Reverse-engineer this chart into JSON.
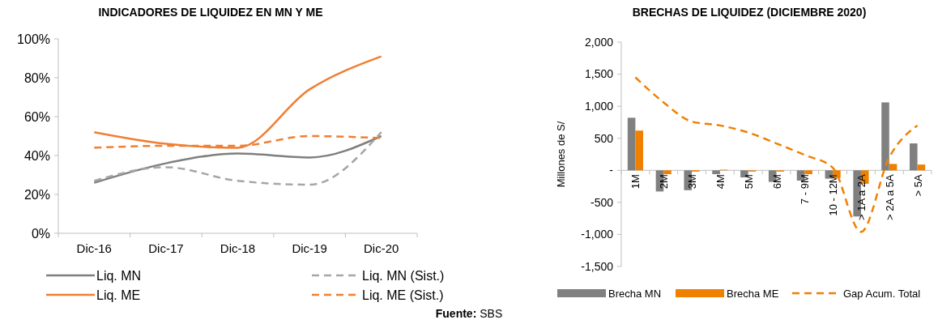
{
  "chart_data": [
    {
      "type": "line",
      "title": "INDICADORES DE LIQUIDEZ EN MN Y ME",
      "categories": [
        "Dic-16",
        "Dic-17",
        "Dic-18",
        "Dic-19",
        "Dic-20"
      ],
      "series": [
        {
          "name": "Liq. MN",
          "color": "#7f7f7f",
          "line_style": "solid",
          "values": [
            26,
            36,
            41,
            39,
            50
          ]
        },
        {
          "name": "Liq. MN (Sist.)",
          "color": "#a6a6a6",
          "line_style": "dashed",
          "values": [
            27,
            34,
            27,
            25,
            52
          ]
        },
        {
          "name": "Liq. ME",
          "color": "#f07f33",
          "line_style": "solid",
          "values": [
            52,
            46,
            44,
            74,
            91
          ]
        },
        {
          "name": "Liq. ME (Sist.)",
          "color": "#f07f33",
          "line_style": "dashed",
          "values": [
            44,
            45,
            45,
            50,
            49
          ]
        }
      ],
      "ylim": [
        0,
        100
      ],
      "yticks": [
        {
          "value": 0,
          "label": "0%"
        },
        {
          "value": 20,
          "label": "20%"
        },
        {
          "value": 40,
          "label": "40%"
        },
        {
          "value": 60,
          "label": "60%"
        },
        {
          "value": 80,
          "label": "80%"
        },
        {
          "value": 100,
          "label": "100%"
        }
      ],
      "grid": false,
      "legend": "bottom"
    },
    {
      "type": "bar",
      "title": "BRECHAS DE LIQUIDEZ (DICIEMBRE 2020)",
      "ylabel": "Millones de S/",
      "categories": [
        "1M",
        "2M",
        "3M",
        "4M",
        "5M",
        "6M",
        "7 - 9M",
        "10 - 12M",
        "> 1A a 2A",
        "> 2A a 5A",
        "> 5A"
      ],
      "series": [
        {
          "name": "Brecha MN",
          "color": "#808080",
          "values": [
            820,
            -330,
            -310,
            -60,
            -110,
            -180,
            -160,
            -130,
            -720,
            1060,
            420
          ]
        },
        {
          "name": "Brecha ME",
          "color": "#f08000",
          "values": [
            620,
            -60,
            -20,
            10,
            -20,
            -20,
            -60,
            -120,
            -210,
            100,
            90
          ]
        },
        {
          "name": "Gap Acum. Total",
          "type": "line",
          "line_style": "dashed",
          "color": "#f08000",
          "values": [
            1450,
            1060,
            760,
            700,
            590,
            420,
            240,
            40,
            -960,
            200,
            700
          ]
        }
      ],
      "ylim": [
        -1500,
        2000
      ],
      "yticks": [
        {
          "value": -1500,
          "label": "-1,500"
        },
        {
          "value": -1000,
          "label": "-1,000"
        },
        {
          "value": -500,
          "label": "-500"
        },
        {
          "value": 0,
          "label": "-"
        },
        {
          "value": 500,
          "label": "500"
        },
        {
          "value": 1000,
          "label": "1,000"
        },
        {
          "value": 1500,
          "label": "1,500"
        },
        {
          "value": 2000,
          "label": "2,000"
        }
      ],
      "grid": false,
      "legend": "bottom",
      "annotations": [
        "Fuente: SBS"
      ]
    }
  ]
}
